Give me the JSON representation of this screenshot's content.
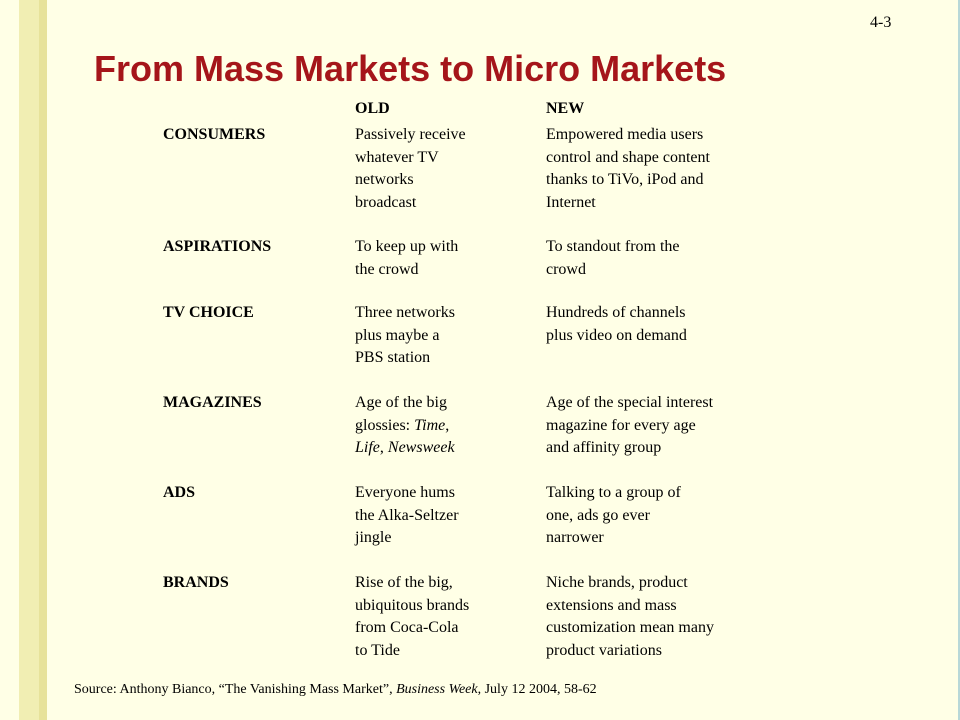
{
  "slide_number": "4-3",
  "title": "From Mass Markets to Micro Markets",
  "columns": {
    "old": "OLD",
    "new": "NEW"
  },
  "rows": [
    {
      "category": "CONSUMERS",
      "old": [
        "Passively receive",
        "whatever TV",
        "networks",
        "broadcast"
      ],
      "new": [
        "Empowered media users",
        "control and shape content",
        "thanks to TiVo, iPod and",
        "Internet"
      ]
    },
    {
      "category": "ASPIRATIONS",
      "old": [
        "To keep up with",
        "the crowd"
      ],
      "new": [
        "To standout from the",
        "crowd"
      ]
    },
    {
      "category": "TV CHOICE",
      "old": [
        "Three networks",
        "plus maybe a",
        "PBS station"
      ],
      "new": [
        "Hundreds of channels",
        "plus video on demand"
      ]
    },
    {
      "category": "MAGAZINES",
      "old_parts": [
        {
          "normal": "Age of the big"
        },
        {
          "normal": "glossies: ",
          "italic": "Time",
          "after": ","
        },
        {
          "italic": "Life",
          "normal": ", ",
          "italic2": "Newsweek"
        }
      ],
      "new": [
        "Age of the special interest",
        "magazine for every age",
        "and affinity group"
      ]
    },
    {
      "category": "ADS",
      "old": [
        "Everyone hums",
        "the Alka-Seltzer",
        "jingle"
      ],
      "new": [
        "Talking to a group of",
        "one, ads go ever",
        "narrower"
      ]
    },
    {
      "category": "BRANDS",
      "old": [
        "Rise of the big,",
        "ubiquitous brands",
        "from Coca-Cola",
        "to Tide"
      ],
      "new": [
        "Niche brands, product",
        "extensions and mass",
        "customization mean many",
        "product variations"
      ]
    }
  ],
  "source": {
    "prefix": "Source: Anthony Bianco, “The Vanishing Mass Market”, ",
    "publication": "Business Week",
    "suffix": ", July 12 2004, 58-62"
  }
}
